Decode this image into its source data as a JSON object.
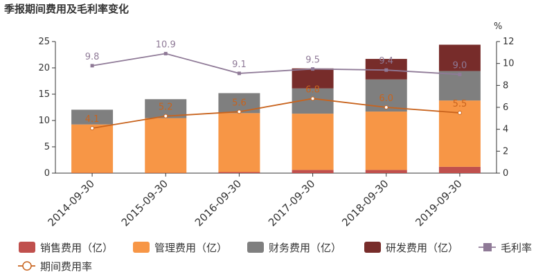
{
  "title": "季报期间费用及毛利率变化",
  "chart_data": {
    "type": "bar",
    "categories": [
      "2014-09-30",
      "2015-09-30",
      "2016-09-30",
      "2017-09-30",
      "2018-09-30",
      "2019-09-30"
    ],
    "left_axis": {
      "ylim": [
        0,
        25
      ],
      "ticks": [
        0,
        5,
        10,
        15,
        20,
        25
      ]
    },
    "right_axis": {
      "unit": "%",
      "ylim": [
        0,
        12
      ],
      "ticks": [
        0,
        2,
        4,
        6,
        8,
        10,
        12
      ]
    },
    "stacked_series": [
      {
        "name": "销售费用（亿）",
        "color": "#c0504d",
        "values": [
          0.05,
          0.05,
          0.2,
          0.6,
          0.6,
          1.2
        ]
      },
      {
        "name": "管理费用（亿）",
        "color": "#f79646",
        "values": [
          9.2,
          10.4,
          11.2,
          10.7,
          11.1,
          12.6
        ]
      },
      {
        "name": "财务费用（亿）",
        "color": "#7f7f7f",
        "values": [
          2.8,
          3.6,
          3.8,
          4.8,
          6.1,
          5.6
        ]
      },
      {
        "name": "研发费用（亿）",
        "color": "#772c2a",
        "values": [
          0,
          0,
          0,
          3.8,
          3.9,
          5.0
        ]
      }
    ],
    "line_series": [
      {
        "name": "毛利率",
        "color": "#8f7a97",
        "marker": "square",
        "axis": "right",
        "values": [
          9.8,
          10.9,
          9.1,
          9.5,
          9.4,
          9.0
        ],
        "labels": [
          "9.8",
          "10.9",
          "9.1",
          "9.5",
          "9.4",
          "9.0"
        ]
      },
      {
        "name": "期间费用率",
        "color": "#c8631d",
        "marker": "circle",
        "axis": "right",
        "values": [
          4.1,
          5.2,
          5.6,
          6.8,
          6.0,
          5.5
        ],
        "labels": [
          "4.1",
          "5.2",
          "5.6",
          "6.8",
          "6.0",
          "5.5"
        ]
      }
    ],
    "grid": false,
    "legend_placement": "bottom"
  }
}
